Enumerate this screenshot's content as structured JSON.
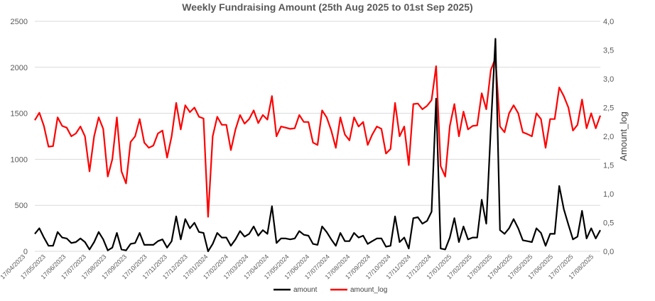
{
  "chart_data": {
    "type": "line",
    "title": "Weekly Fundraising Amount (25th Aug 2025 to 01st Sep 2025)",
    "ylabel_right": "Amount_log",
    "ylim_left": [
      0,
      2500
    ],
    "ylim_right": [
      0,
      4
    ],
    "yticks_left": [
      "0",
      "500",
      "1000",
      "1500",
      "2000",
      "2500"
    ],
    "yticks_right": [
      "0,0",
      "0,5",
      "1,0",
      "1,5",
      "2,0",
      "2,5",
      "3,0",
      "3,5",
      "4,0"
    ],
    "grid": true,
    "legend_position": "bottom",
    "xtick_labels": [
      "17/04/2023",
      "17/05/2023",
      "17/06/2023",
      "17/07/2023",
      "17/08/2023",
      "17/09/2023",
      "17/10/2023",
      "17/11/2023",
      "17/12/2023",
      "17/01/2024",
      "17/02/2024",
      "17/03/2024",
      "17/04/2024",
      "17/05/2024",
      "17/06/2024",
      "17/07/2024",
      "17/08/2024",
      "17/09/2024",
      "17/10/2024",
      "17/11/2024",
      "17/12/2024",
      "17/01/2025",
      "17/02/2025",
      "17/03/2025",
      "17/04/2025",
      "17/05/2025",
      "17/06/2025",
      "17/07/2025",
      "17/08/2025"
    ],
    "series": [
      {
        "name": "amount",
        "axis": "left",
        "color": "#000000",
        "values": [
          190,
          250,
          150,
          60,
          60,
          210,
          150,
          140,
          90,
          100,
          140,
          100,
          20,
          100,
          210,
          130,
          10,
          40,
          200,
          20,
          10,
          80,
          90,
          200,
          70,
          70,
          70,
          110,
          130,
          40,
          110,
          380,
          130,
          350,
          250,
          310,
          210,
          200,
          0,
          80,
          200,
          150,
          150,
          60,
          130,
          220,
          160,
          190,
          270,
          170,
          230,
          190,
          490,
          90,
          140,
          140,
          130,
          140,
          220,
          180,
          170,
          80,
          70,
          270,
          210,
          130,
          60,
          200,
          110,
          110,
          200,
          150,
          170,
          80,
          110,
          140,
          140,
          50,
          60,
          380,
          100,
          150,
          30,
          360,
          370,
          300,
          330,
          430,
          1660,
          30,
          20,
          150,
          360,
          100,
          270,
          130,
          150,
          150,
          560,
          300,
          1340,
          2310,
          230,
          190,
          250,
          350,
          250,
          120,
          110,
          100,
          250,
          200,
          60,
          190,
          190,
          710,
          460,
          290,
          130,
          160,
          440,
          140,
          250,
          140,
          230
        ]
      },
      {
        "name": "amount_log",
        "axis": "right",
        "color": "#ff0000",
        "values": [
          2.28,
          2.41,
          2.18,
          1.82,
          1.83,
          2.33,
          2.18,
          2.15,
          2.0,
          2.05,
          2.17,
          2.0,
          1.39,
          2.0,
          2.33,
          2.13,
          1.3,
          1.6,
          2.33,
          1.39,
          1.18,
          1.9,
          2.0,
          2.3,
          1.89,
          1.8,
          1.84,
          2.05,
          2.1,
          1.63,
          2.0,
          2.58,
          2.12,
          2.54,
          2.42,
          2.5,
          2.34,
          2.31,
          0.6,
          2.0,
          2.34,
          2.2,
          2.2,
          1.76,
          2.12,
          2.37,
          2.22,
          2.3,
          2.45,
          2.23,
          2.37,
          2.29,
          2.7,
          2.0,
          2.17,
          2.15,
          2.13,
          2.14,
          2.37,
          2.25,
          2.25,
          1.89,
          1.85,
          2.45,
          2.33,
          2.1,
          1.8,
          2.33,
          2.03,
          1.93,
          2.33,
          2.17,
          2.25,
          1.85,
          2.03,
          2.17,
          2.13,
          1.7,
          1.78,
          2.58,
          2.0,
          2.17,
          1.5,
          2.56,
          2.57,
          2.47,
          2.53,
          2.63,
          3.22,
          1.48,
          1.3,
          2.18,
          2.56,
          2.0,
          2.43,
          2.12,
          2.18,
          2.19,
          2.75,
          2.47,
          3.15,
          3.36,
          2.17,
          2.07,
          2.4,
          2.54,
          2.4,
          2.07,
          2.04,
          2.0,
          2.4,
          2.3,
          1.8,
          2.3,
          2.3,
          2.85,
          2.7,
          2.5,
          2.1,
          2.2,
          2.64,
          2.14,
          2.4,
          2.14,
          2.36
        ]
      }
    ]
  }
}
